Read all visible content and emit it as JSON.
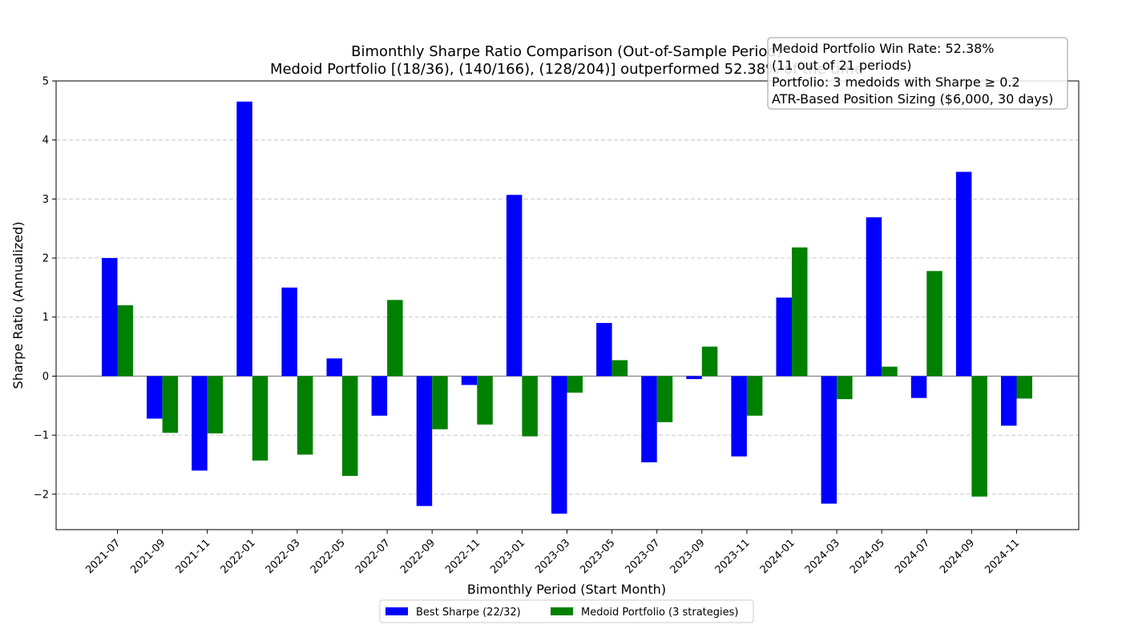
{
  "chart_data": {
    "type": "bar",
    "title_line1": "Bimonthly Sharpe Ratio Comparison (Out-of-Sample Period)",
    "title_line2": "Medoid Portfolio [(18/36), (140/166), (128/204)] outperformed 52.38% of the time",
    "xlabel": "Bimonthly Period (Start Month)",
    "ylabel": "Sharpe Ratio (Annualized)",
    "ylim": [
      -2.6,
      5
    ],
    "yticks": [
      -2,
      -1,
      0,
      1,
      2,
      3,
      4,
      5
    ],
    "ytick_labels": [
      "−2",
      "−1",
      "0",
      "1",
      "2",
      "3",
      "4",
      "5"
    ],
    "grid": "horizontal dashed",
    "legend_position": "bottom-center",
    "categories": [
      "2021-07",
      "2021-09",
      "2021-11",
      "2022-01",
      "2022-03",
      "2022-05",
      "2022-07",
      "2022-09",
      "2022-11",
      "2023-01",
      "2023-03",
      "2023-05",
      "2023-07",
      "2023-09",
      "2023-11",
      "2024-01",
      "2024-03",
      "2024-05",
      "2024-07",
      "2024-09",
      "2024-11"
    ],
    "series": [
      {
        "name": "Best Sharpe (22/32)",
        "color": "#0000ff",
        "values": [
          2.0,
          -0.72,
          -1.6,
          4.65,
          1.5,
          0.3,
          -0.67,
          -2.2,
          -0.15,
          3.07,
          -2.33,
          0.9,
          -1.46,
          -0.05,
          -1.36,
          1.33,
          -2.16,
          2.69,
          -0.37,
          3.46,
          -0.84
        ]
      },
      {
        "name": "Medoid Portfolio (3 strategies)",
        "color": "#008000",
        "values": [
          1.2,
          -0.96,
          -0.97,
          -1.43,
          -1.33,
          -1.69,
          1.29,
          -0.9,
          -0.82,
          -1.02,
          -0.28,
          0.27,
          -0.78,
          0.5,
          -0.67,
          2.18,
          -0.39,
          0.16,
          1.78,
          -2.04,
          -0.38
        ]
      }
    ],
    "annotation": [
      "Medoid Portfolio Win Rate: 52.38%",
      "(11 out of 21 periods)",
      "Portfolio: 3 medoids with Sharpe ≥ 0.2",
      "ATR-Based Position Sizing ($6,000, 30 days)"
    ]
  }
}
